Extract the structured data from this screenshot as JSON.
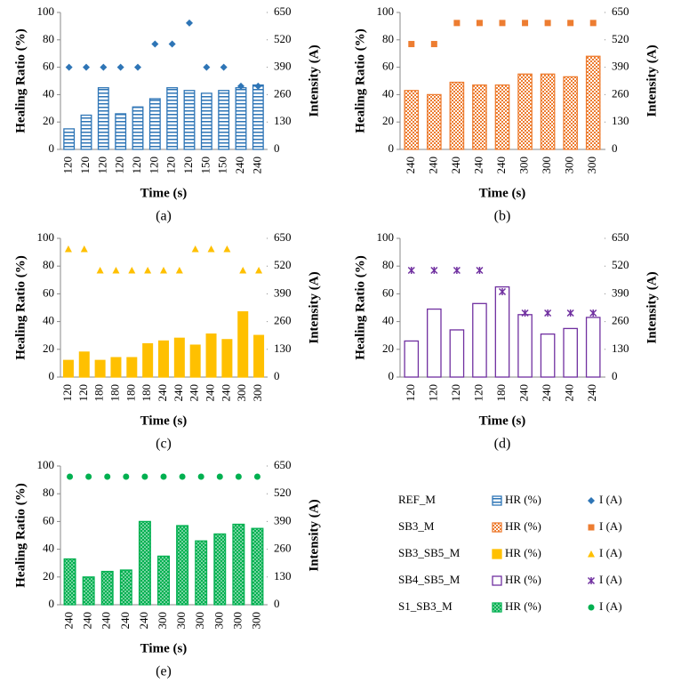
{
  "chart_data": [
    {
      "type": "bar",
      "label": "(a)",
      "name": "REF_M",
      "pattern": "horizontal",
      "marker": "diamond",
      "x_label": "Time (s)",
      "y_label": "Healing Ratio (%)",
      "y2_label": "Intensity (A)",
      "categories": [
        "120",
        "120",
        "120",
        "120",
        "120",
        "120",
        "120",
        "120",
        "150",
        "150",
        "240",
        "240"
      ],
      "series": [
        {
          "name": "HR (%)",
          "color": "#2e75b6",
          "values": [
            15,
            25,
            45,
            26,
            31,
            37,
            45,
            43,
            41,
            43,
            45,
            47
          ]
        },
        {
          "name": "I (A)",
          "color": "#2e75b6",
          "axis": "y2",
          "values": [
            390,
            390,
            390,
            390,
            390,
            500,
            500,
            600,
            390,
            390,
            300,
            300
          ]
        }
      ],
      "ylim": [
        0,
        100
      ],
      "yticks": [
        0,
        20,
        40,
        60,
        80,
        100
      ],
      "y2lim": [
        0,
        650
      ],
      "y2ticks": [
        0,
        130,
        260,
        390,
        520,
        650
      ]
    },
    {
      "type": "bar",
      "label": "(b)",
      "name": "SB3_M",
      "pattern": "checker",
      "marker": "square",
      "x_label": "Time (s)",
      "y_label": "Healing Ratio (%)",
      "y2_label": "Intensity (A)",
      "categories": [
        "240",
        "240",
        "240",
        "240",
        "240",
        "300",
        "300",
        "300",
        "300"
      ],
      "series": [
        {
          "name": "HR (%)",
          "color": "#ed7d31",
          "values": [
            43,
            40,
            49,
            47,
            47,
            55,
            55,
            53,
            68
          ]
        },
        {
          "name": "I (A)",
          "color": "#ed7d31",
          "axis": "y2",
          "values": [
            500,
            500,
            600,
            600,
            600,
            600,
            600,
            600,
            600
          ]
        }
      ],
      "ylim": [
        0,
        100
      ],
      "yticks": [
        0,
        20,
        40,
        60,
        80,
        100
      ],
      "y2lim": [
        0,
        650
      ],
      "y2ticks": [
        0,
        130,
        260,
        390,
        520,
        650
      ]
    },
    {
      "type": "bar",
      "label": "(c)",
      "name": "SB3_SB5_M",
      "pattern": "solid",
      "marker": "triangle",
      "x_label": "Time (s)",
      "y_label": "Healing Ratio (%)",
      "y2_label": "Intensity (A)",
      "categories": [
        "120",
        "120",
        "180",
        "180",
        "180",
        "180",
        "240",
        "240",
        "240",
        "240",
        "240",
        "300",
        "300"
      ],
      "series": [
        {
          "name": "HR (%)",
          "color": "#ffc000",
          "values": [
            12,
            18,
            12,
            14,
            14,
            24,
            26,
            28,
            23,
            31,
            27,
            47,
            30
          ]
        },
        {
          "name": "I (A)",
          "color": "#ffc000",
          "axis": "y2",
          "values": [
            600,
            600,
            500,
            500,
            500,
            500,
            500,
            500,
            600,
            600,
            600,
            500,
            500
          ]
        }
      ],
      "ylim": [
        0,
        100
      ],
      "yticks": [
        0,
        20,
        40,
        60,
        80,
        100
      ],
      "y2lim": [
        0,
        650
      ],
      "y2ticks": [
        0,
        130,
        260,
        390,
        520,
        650
      ]
    },
    {
      "type": "bar",
      "label": "(d)",
      "name": "SB4_SB5_M",
      "pattern": "outline",
      "marker": "asterisk",
      "x_label": "Time (s)",
      "y_label": "Healing Ratio (%)",
      "y2_label": "Intensity (A)",
      "categories": [
        "120",
        "120",
        "120",
        "120",
        "180",
        "240",
        "240",
        "240",
        "240"
      ],
      "series": [
        {
          "name": "HR (%)",
          "color": "#7030a0",
          "values": [
            26,
            49,
            34,
            53,
            65,
            45,
            31,
            35,
            43
          ]
        },
        {
          "name": "I (A)",
          "color": "#7030a0",
          "axis": "y2",
          "values": [
            500,
            500,
            500,
            500,
            400,
            300,
            300,
            300,
            300
          ]
        }
      ],
      "ylim": [
        0,
        100
      ],
      "yticks": [
        0,
        20,
        40,
        60,
        80,
        100
      ],
      "y2lim": [
        0,
        650
      ],
      "y2ticks": [
        0,
        130,
        260,
        390,
        520,
        650
      ]
    },
    {
      "type": "bar",
      "label": "(e)",
      "name": "S1_SB3_M",
      "pattern": "dots",
      "marker": "circle",
      "x_label": "Time (s)",
      "y_label": "Healing Ratio (%)",
      "y2_label": "Intensity (A)",
      "categories": [
        "240",
        "240",
        "240",
        "240",
        "240",
        "300",
        "300",
        "300",
        "300",
        "300",
        "300"
      ],
      "series": [
        {
          "name": "HR (%)",
          "color": "#00b050",
          "values": [
            33,
            20,
            24,
            25,
            60,
            35,
            57,
            46,
            51,
            58,
            55
          ]
        },
        {
          "name": "I (A)",
          "color": "#00b050",
          "axis": "y2",
          "values": [
            600,
            600,
            600,
            600,
            600,
            600,
            600,
            600,
            600,
            600,
            600
          ]
        }
      ],
      "ylim": [
        0,
        100
      ],
      "yticks": [
        0,
        20,
        40,
        60,
        80,
        100
      ],
      "y2lim": [
        0,
        650
      ],
      "y2ticks": [
        0,
        130,
        260,
        390,
        520,
        650
      ]
    }
  ]
}
